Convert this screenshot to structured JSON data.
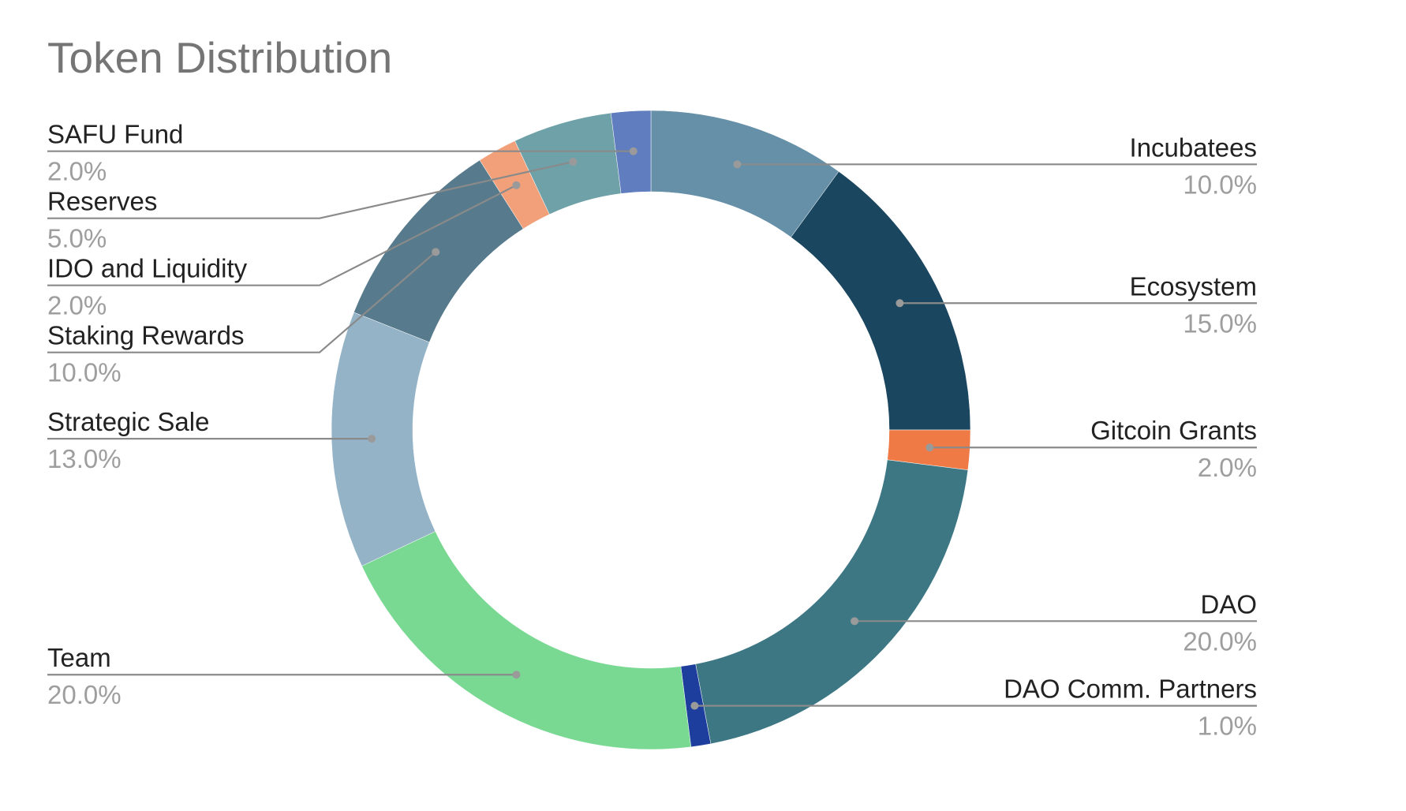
{
  "chart_data": {
    "type": "pie",
    "donut": true,
    "title": "Token Distribution",
    "start_angle_deg": 0,
    "direction": "clockwise",
    "slices": [
      {
        "label": "Incubatees",
        "value": 10.0,
        "display": "10.0%",
        "color": "#6690A8",
        "side": "right"
      },
      {
        "label": "Ecosystem",
        "value": 15.0,
        "display": "15.0%",
        "color": "#1B4660",
        "side": "right"
      },
      {
        "label": "Gitcoin Grants",
        "value": 2.0,
        "display": "2.0%",
        "color": "#EF7A46",
        "side": "right"
      },
      {
        "label": "DAO",
        "value": 20.0,
        "display": "20.0%",
        "color": "#3C7783",
        "side": "right"
      },
      {
        "label": "DAO Comm. Partners",
        "value": 1.0,
        "display": "1.0%",
        "color": "#1E3E9E",
        "side": "right"
      },
      {
        "label": "Team",
        "value": 20.0,
        "display": "20.0%",
        "color": "#79D992",
        "side": "left"
      },
      {
        "label": "Strategic Sale",
        "value": 13.0,
        "display": "13.0%",
        "color": "#94B3C7",
        "side": "left"
      },
      {
        "label": "Staking Rewards",
        "value": 10.0,
        "display": "10.0%",
        "color": "#577B8C",
        "side": "left"
      },
      {
        "label": "IDO and Liquidity",
        "value": 2.0,
        "display": "2.0%",
        "color": "#F2A07A",
        "side": "left"
      },
      {
        "label": "Reserves",
        "value": 5.0,
        "display": "5.0%",
        "color": "#6EA1A8",
        "side": "left"
      },
      {
        "label": "SAFU Fund",
        "value": 2.0,
        "display": "2.0%",
        "color": "#5F7DBF",
        "side": "left"
      }
    ],
    "legend": "none"
  }
}
